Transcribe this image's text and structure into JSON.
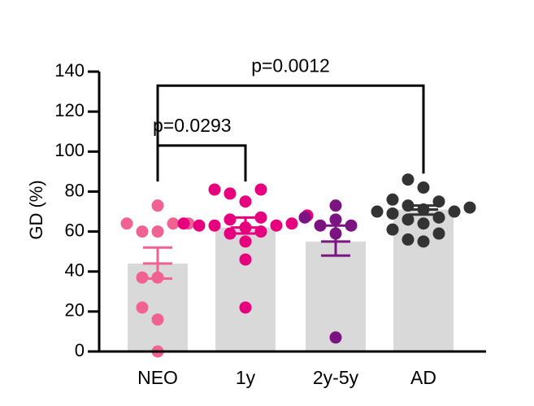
{
  "chart_data": {
    "type": "bar",
    "ylabel": "GD (%)",
    "ylim": [
      0,
      140
    ],
    "yticks": [
      0,
      20,
      40,
      60,
      80,
      100,
      120,
      140
    ],
    "categories": [
      "NEO",
      "1y",
      "2y-5y",
      "AD"
    ],
    "bars": [
      {
        "category": "NEO",
        "mean": 44,
        "sem_low": 36.5,
        "sem_high": 52,
        "color": "#f06292",
        "points": [
          0,
          16,
          22,
          37,
          37,
          60,
          60,
          64,
          64,
          64,
          73
        ]
      },
      {
        "category": "1y",
        "mean": 62,
        "sem_low": 59,
        "sem_high": 67,
        "color": "#e6007e",
        "points": [
          22,
          46,
          55,
          59,
          60,
          62,
          63,
          63,
          63,
          64,
          64,
          66,
          67,
          68,
          75,
          79,
          81,
          81
        ]
      },
      {
        "category": "2y-5y",
        "mean": 55,
        "sem_low": 48,
        "sem_high": 63,
        "color": "#7b1480",
        "points": [
          7,
          59,
          63,
          63,
          66,
          67,
          73
        ]
      },
      {
        "category": "AD",
        "mean": 71,
        "sem_low": 68.5,
        "sem_high": 73,
        "color": "#333333",
        "points": [
          55,
          56,
          59,
          61,
          64,
          66,
          67,
          69,
          70,
          70,
          71,
          72,
          73,
          75,
          76,
          82,
          86
        ]
      }
    ],
    "bar_color": "#d9d9d9",
    "annotations": [
      {
        "label": "p=0.0293",
        "from": "NEO",
        "to": "1y",
        "y": 103
      },
      {
        "label": "p=0.0012",
        "from": "NEO",
        "to": "AD",
        "y": 133
      }
    ],
    "grid": false,
    "legend": "none"
  }
}
